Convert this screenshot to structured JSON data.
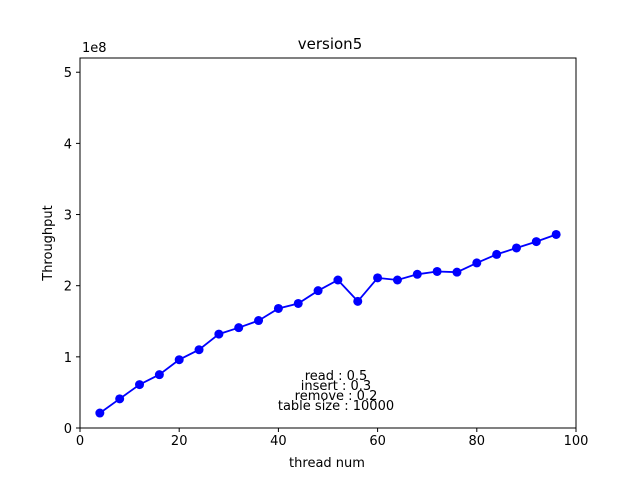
{
  "chart_data": {
    "type": "line",
    "title": "version5",
    "xlabel": "thread num",
    "ylabel": "Throughput",
    "y_scale_label": "1e8",
    "xlim": [
      0,
      100
    ],
    "ylim": [
      0,
      5.2
    ],
    "x_ticks": [
      0,
      20,
      40,
      60,
      80,
      100
    ],
    "y_ticks": [
      0,
      1,
      2,
      3,
      4,
      5
    ],
    "grid": false,
    "series": [
      {
        "color": "#0000ff",
        "marker": "circle",
        "x": [
          4,
          8,
          12,
          16,
          20,
          24,
          28,
          32,
          36,
          40,
          44,
          48,
          52,
          56,
          60,
          64,
          68,
          72,
          76,
          80,
          84,
          88,
          92,
          96
        ],
        "y": [
          0.21,
          0.41,
          0.61,
          0.75,
          0.96,
          1.1,
          1.32,
          1.41,
          1.51,
          1.68,
          1.75,
          1.93,
          2.08,
          1.78,
          2.11,
          2.08,
          2.16,
          2.2,
          2.19,
          2.32,
          2.44,
          2.53,
          2.62,
          2.72
        ]
      }
    ],
    "annotations": [
      "read : 0.5",
      "insert : 0.3",
      "remove : 0.2",
      "table size : 10000"
    ]
  }
}
